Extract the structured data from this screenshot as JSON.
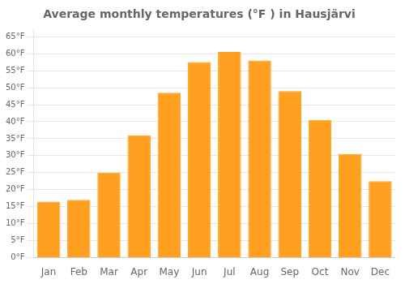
{
  "chart_data": {
    "type": "bar",
    "title": "Average monthly temperatures (°F ) in Hausjärvi",
    "categories": [
      "Jan",
      "Feb",
      "Mar",
      "Apr",
      "May",
      "Jun",
      "Jul",
      "Aug",
      "Sep",
      "Oct",
      "Nov",
      "Dec"
    ],
    "values": [
      16.5,
      17.0,
      25.0,
      36.0,
      48.5,
      57.5,
      60.5,
      58.0,
      49.0,
      40.5,
      30.5,
      22.5
    ],
    "color": "#FFA020",
    "ylim": [
      0,
      67
    ],
    "yticks": [
      {
        "value": 0,
        "label": "0°F"
      },
      {
        "value": 5,
        "label": "5°F"
      },
      {
        "value": 10,
        "label": "10°F"
      },
      {
        "value": 15,
        "label": "15°F"
      },
      {
        "value": 20,
        "label": "20°F"
      },
      {
        "value": 25,
        "label": "25°F"
      },
      {
        "value": 30,
        "label": "30°F"
      },
      {
        "value": 35,
        "label": "35°F"
      },
      {
        "value": 40,
        "label": "40°F"
      },
      {
        "value": 45,
        "label": "45°F"
      },
      {
        "value": 50,
        "label": "50°F"
      },
      {
        "value": 55,
        "label": "55°F"
      },
      {
        "value": 60,
        "label": "60°F"
      },
      {
        "value": 65,
        "label": "65°F"
      }
    ],
    "grid": true
  }
}
